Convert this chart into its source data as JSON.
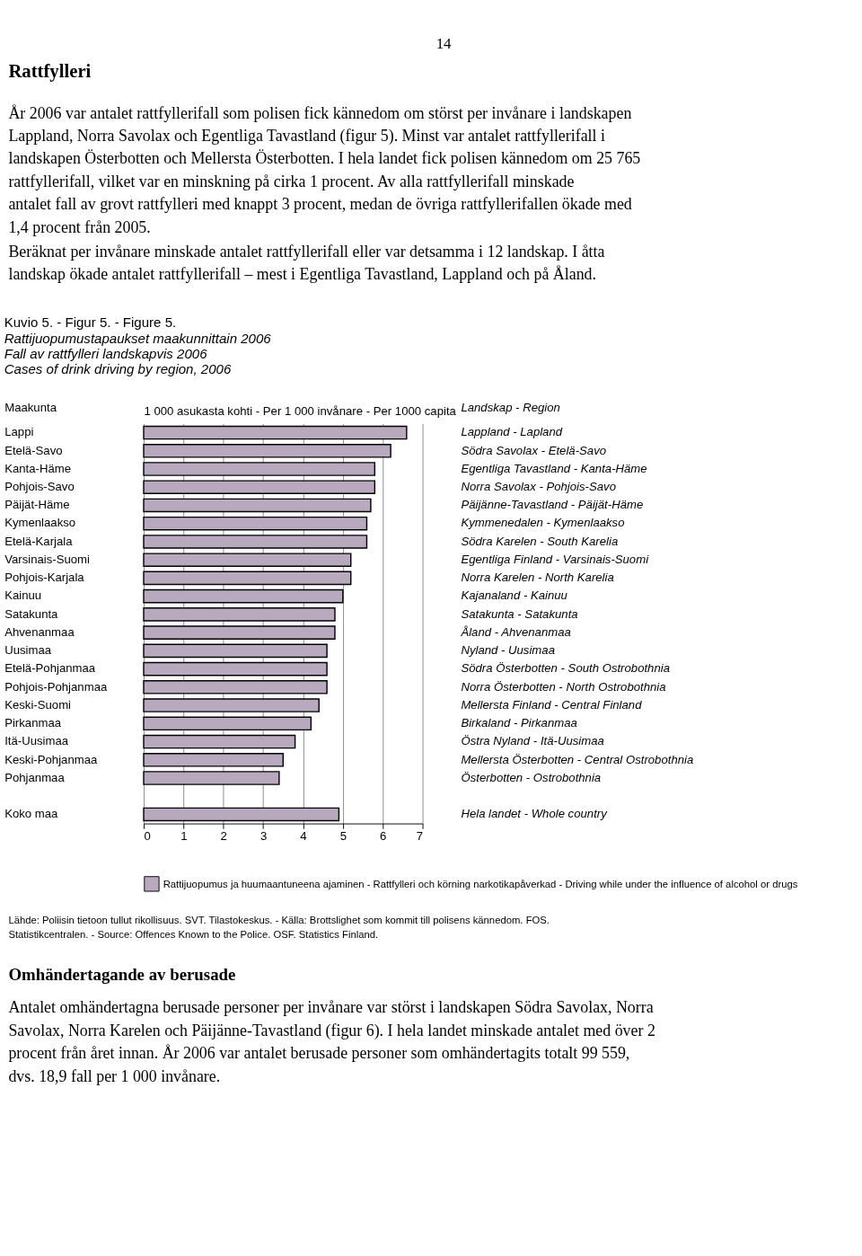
{
  "chart_data": {
    "type": "bar",
    "orientation": "horizontal",
    "title": "Kuvio 5. - Figur 5. - Figure 5.",
    "subtitle": "Rattijuopumustapaukset maakunnittain 2006\nFall av rattfylleri landskapvis 2006\nCases of drink driving by region, 2006",
    "xlabel": "1 000 asukasta kohti - Per 1 000 invånare - Per 1000 capita",
    "ylabel": "Maakunta",
    "y2label": "Landskap - Region",
    "categories": [
      "Lappi",
      "Etelä-Savo",
      "Kanta-Häme",
      "Pohjois-Savo",
      "Päijät-Häme",
      "Kymenlaakso",
      "Etelä-Karjala",
      "Varsinais-Suomi",
      "Pohjois-Karjala",
      "Kainuu",
      "Satakunta",
      "Ahvenanmaa",
      "Uusimaa",
      "Etelä-Pohjanmaa",
      "Pohjois-Pohjanmaa",
      "Keski-Suomi",
      "Pirkanmaa",
      "Itä-Uusimaa",
      "Keski-Pohjanmaa",
      "Pohjanmaa",
      null,
      "Koko maa"
    ],
    "y2_categories": [
      "Lappland - Lapland",
      "Södra Savolax - Etelä-Savo",
      "Egentliga Tavastland - Kanta-Häme",
      "Norra Savolax - Pohjois-Savo",
      "Päijänne-Tavastland - Päijät-Häme",
      "Kymmenedalen - Kymenlaakso",
      "Södra Karelen - South Karelia",
      "Egentliga Finland - Varsinais-Suomi",
      "Norra Karelen - North Karelia",
      "Kajanaland - Kainuu",
      "Satakunta - Satakunta",
      "Åland - Ahvenanmaa",
      "Nyland - Uusimaa",
      "Södra Österbotten - South Ostrobothnia",
      "Norra Österbotten - North Ostrobothnia",
      "Mellersta Finland - Central Finland",
      "Birkaland - Pirkanmaa",
      "Östra Nyland - Itä-Uusimaa",
      "Mellersta Österbotten - Central Ostrobothnia",
      "Österbotten - Ostrobothnia",
      null,
      "Hela landet - Whole country"
    ],
    "series": [
      {
        "name": "Rattijuopumus ja huumaantuneena ajaminen - Rattfylleri och körning narkotikapåverkad - Driving while under the influence of alcohol or drugs",
        "color": "#b8a9bf",
        "values": [
          6.6,
          6.2,
          5.8,
          5.8,
          5.7,
          5.6,
          5.6,
          5.2,
          5.2,
          5.0,
          4.8,
          4.8,
          4.6,
          4.6,
          4.6,
          4.4,
          4.2,
          3.8,
          3.5,
          3.4,
          null,
          4.9
        ]
      }
    ],
    "xlim": [
      0,
      7
    ],
    "xticks": [
      0,
      1,
      2,
      3,
      4,
      5,
      6,
      7
    ],
    "grid": "x",
    "legend": "bottom",
    "annotations": [
      "14",
      "Rattfylleri",
      "År 2006 var antalet rattfyllerifall som polisen fick kännedom om störst per invånare i landskapen Lappland, Norra Savolax och Egentliga Tavastland (figur 5). Minst var antalet rattfyllerifall i landskapen Österbotten och Mellersta Österbotten. I hela landet fick polisen kännedom om 25 765 rattfyllerifall, vilket var en minskning på cirka 1 procent. Av alla rattfyllerifall minskade antalet fall av grovt rattfylleri med knappt 3 procent, medan de övriga rattfyllerifallen ökade med 1,4 procent från 2005.",
      "Beräknat per invånare minskade antalet rattfyllerifall eller var detsamma i 12 landskap. I åtta landskap ökade antalet rattfyllerifall – mest i Egentliga Tavastland, Lappland och på Åland.",
      "Lähde: Poliisin tietoon tullut rikollisuus. SVT. Tilastokeskus. - Källa: Brottslighet som kommit till polisens kännedom. FOS. Statistikcentralen. - Source: Offences Known to the Police. OSF. Statistics Finland.",
      "Omhändertagande av berusade",
      "Antalet omhändertagna berusade personer per invånare var störst i landskapen Södra Savolax, Norra Savolax, Norra Karelen och Päijänne-Tavastland (figur 6). I hela landet minskade antalet med över 2 procent från året innan. År 2006 var antalet berusade personer som omhändertagits totalt 99 559, dvs. 18,9 fall per 1 000 invånare."
    ]
  }
}
